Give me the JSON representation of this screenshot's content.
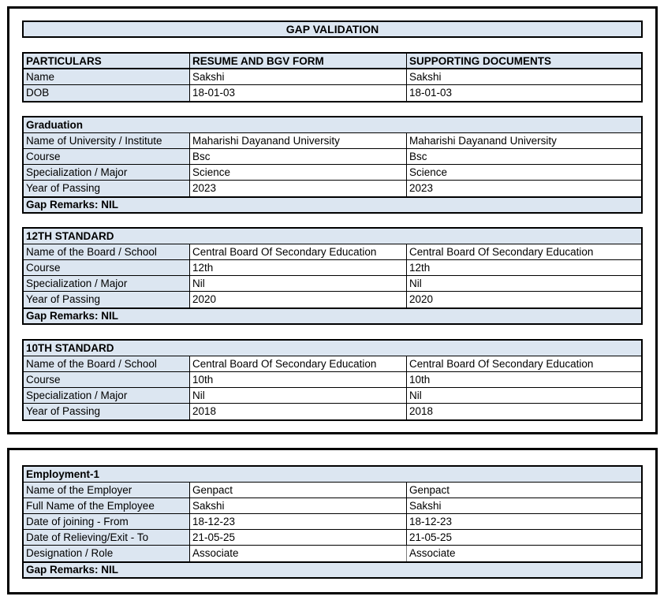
{
  "title": "GAP VALIDATION",
  "colors": {
    "header_fill": "#dce6f1",
    "border": "#000000"
  },
  "comparison_table": {
    "headers": {
      "particulars": "PARTICULARS",
      "resume": "RESUME AND BGV FORM",
      "supporting": "SUPPORTING DOCUMENTS"
    },
    "rows": [
      {
        "label": "Name",
        "resume": "Sakshi",
        "supporting": "Sakshi"
      },
      {
        "label": "DOB",
        "resume": "18-01-03",
        "supporting": "18-01-03"
      }
    ]
  },
  "sections": [
    {
      "title": "Graduation",
      "rows": [
        {
          "label": "Name of University / Institute",
          "resume": "Maharishi Dayanand University",
          "supporting": "Maharishi Dayanand University"
        },
        {
          "label": "Course",
          "resume": "Bsc",
          "supporting": "Bsc"
        },
        {
          "label": "Specialization / Major",
          "resume": "Science",
          "supporting": "Science"
        },
        {
          "label": "Year of Passing",
          "resume": "2023",
          "supporting": "2023"
        }
      ],
      "gap_remarks": "Gap Remarks: NIL"
    },
    {
      "title": "12TH STANDARD",
      "rows": [
        {
          "label": "Name of the Board / School",
          "resume": "Central Board Of Secondary Education",
          "supporting": "Central Board Of Secondary Education"
        },
        {
          "label": "Course",
          "resume": "12th",
          "supporting": "12th"
        },
        {
          "label": "Specialization / Major",
          "resume": "Nil",
          "supporting": "Nil"
        },
        {
          "label": "Year of Passing",
          "resume": "2020",
          "supporting": "2020"
        }
      ],
      "gap_remarks": "Gap Remarks: NIL"
    },
    {
      "title": "10TH STANDARD",
      "rows": [
        {
          "label": "Name of the Board / School",
          "resume": "Central Board Of Secondary Education",
          "supporting": "Central Board Of Secondary Education"
        },
        {
          "label": "Course",
          "resume": "10th",
          "supporting": "10th"
        },
        {
          "label": "Specialization / Major",
          "resume": "Nil",
          "supporting": "Nil"
        },
        {
          "label": "Year of Passing",
          "resume": "2018",
          "supporting": "2018"
        }
      ]
    }
  ],
  "employment": {
    "title": "Employment-1",
    "rows": [
      {
        "label": "Name of the Employer",
        "resume": "Genpact",
        "supporting": "Genpact"
      },
      {
        "label": "Full Name of the Employee",
        "resume": "Sakshi",
        "supporting": "Sakshi"
      },
      {
        "label": "Date of joining - From",
        "resume": "18-12-23",
        "supporting": "18-12-23"
      },
      {
        "label": "Date of Relieving/Exit - To",
        "resume": "21-05-25",
        "supporting": "21-05-25"
      },
      {
        "label": "Designation / Role",
        "resume": "Associate",
        "supporting": "Associate"
      }
    ],
    "gap_remarks": "Gap Remarks: NIL"
  }
}
